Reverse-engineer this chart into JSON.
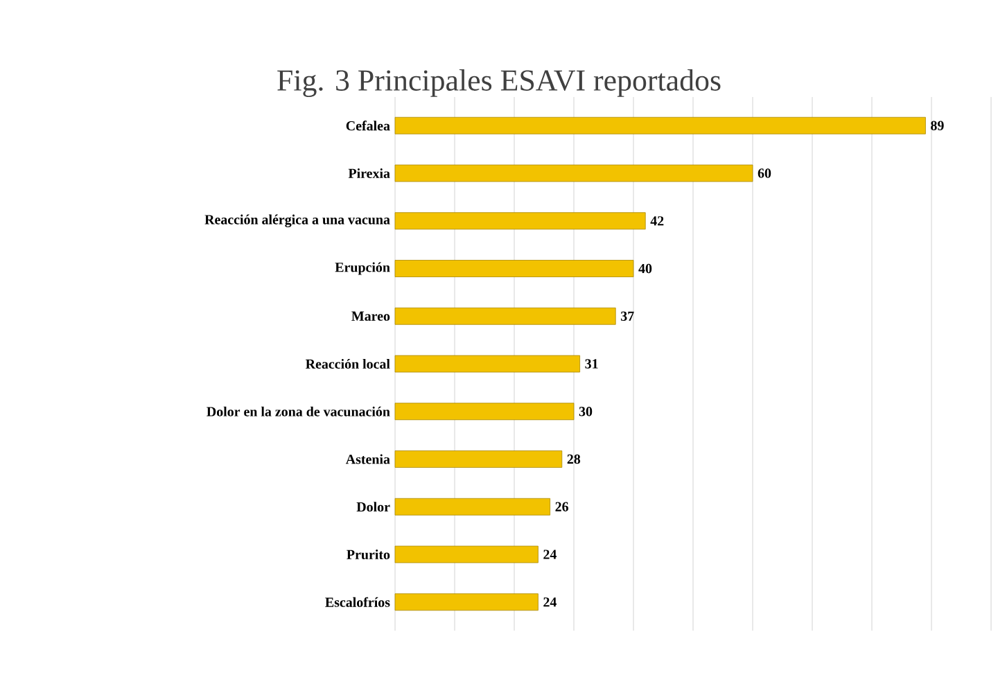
{
  "chart_data": {
    "type": "bar",
    "orientation": "horizontal",
    "title": "Fig. 3 Principales ESAVI reportados",
    "categories": [
      "Cefalea",
      "Pirexia",
      "Reacción alérgica a una vacuna",
      "Erupción",
      "Mareo",
      "Reacción local",
      "Dolor en la zona de vacunación",
      "Astenia",
      "Dolor",
      "Prurito",
      "Escalofríos"
    ],
    "values": [
      89,
      60,
      42,
      40,
      37,
      31,
      30,
      28,
      26,
      24,
      24
    ],
    "color": "#f2c200",
    "xlim": [
      0,
      100
    ],
    "xticks": [
      {
        "value": 0,
        "label": null
      },
      {
        "value": 10,
        "label": null
      },
      {
        "value": 20,
        "label": null
      },
      {
        "value": 30,
        "label": null
      },
      {
        "value": 40,
        "label": null
      },
      {
        "value": 50,
        "label": null
      },
      {
        "value": 60,
        "label": null
      },
      {
        "value": 70,
        "label": null
      },
      {
        "value": 80,
        "label": null
      },
      {
        "value": 90,
        "label": null
      },
      {
        "value": 100,
        "label": null
      }
    ],
    "grid": "x",
    "data_labels": true
  }
}
